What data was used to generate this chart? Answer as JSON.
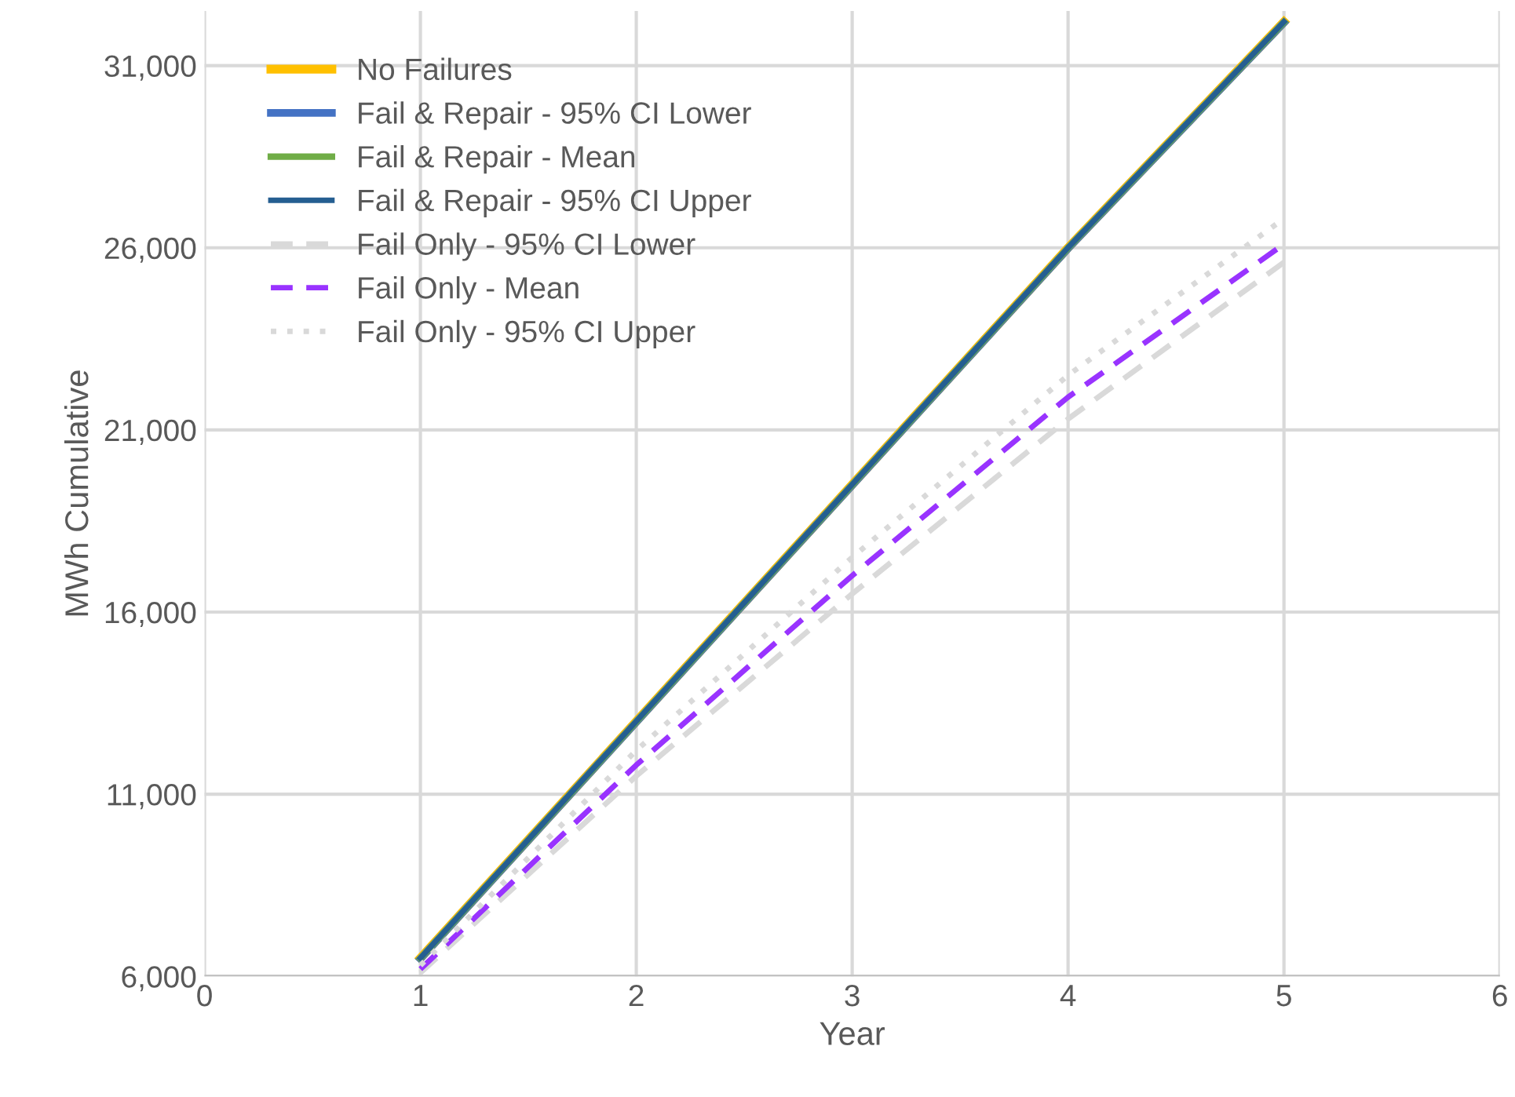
{
  "chart_data": {
    "type": "line",
    "xlabel": "Year",
    "ylabel": "MWh Cumulative",
    "x": [
      1,
      2,
      3,
      4,
      5
    ],
    "xlim": [
      0,
      6
    ],
    "xticks": [
      0,
      1,
      2,
      3,
      4,
      5,
      6
    ],
    "ylim": [
      6000,
      32500
    ],
    "yticks": [
      {
        "value": 6000,
        "label": "6,000"
      },
      {
        "value": 11000,
        "label": "11,000"
      },
      {
        "value": 16000,
        "label": "16,000"
      },
      {
        "value": 21000,
        "label": "21,000"
      },
      {
        "value": 26000,
        "label": "26,000"
      },
      {
        "value": 31000,
        "label": "31,000"
      }
    ],
    "grid": true,
    "legend": "top left",
    "marker": "none",
    "series": [
      {
        "name": "No Failures",
        "color": "#ffc000",
        "line_style": "solid",
        "values": [
          6500,
          13000,
          19500,
          26000,
          32200
        ]
      },
      {
        "name": "Fail & Repair - 95% CI Lower",
        "color": "#4472c4",
        "line_style": "solid",
        "values": [
          6480,
          12980,
          19480,
          25980,
          32180
        ]
      },
      {
        "name": "Fail & Repair - Mean",
        "color": "#70ad47",
        "line_style": "solid",
        "values": [
          6490,
          12990,
          19490,
          25990,
          32190
        ]
      },
      {
        "name": "Fail & Repair - 95% CI Upper",
        "color": "#255e91",
        "line_style": "solid",
        "values": [
          6500,
          13000,
          19500,
          26000,
          32200
        ]
      },
      {
        "name": "Fail Only - 95% CI Lower",
        "color": "#d9d9d9",
        "line_style": "dashed",
        "values": [
          6100,
          11500,
          16500,
          21300,
          25600
        ]
      },
      {
        "name": "Fail Only - Mean",
        "color": "#9933ff",
        "line_style": "dashed",
        "values": [
          6200,
          11800,
          17000,
          21900,
          26100
        ]
      },
      {
        "name": "Fail Only - 95% CI Upper",
        "color": "#d9d9d9",
        "line_style": "dotted",
        "values": [
          6300,
          12200,
          17500,
          22500,
          26800
        ]
      }
    ]
  }
}
